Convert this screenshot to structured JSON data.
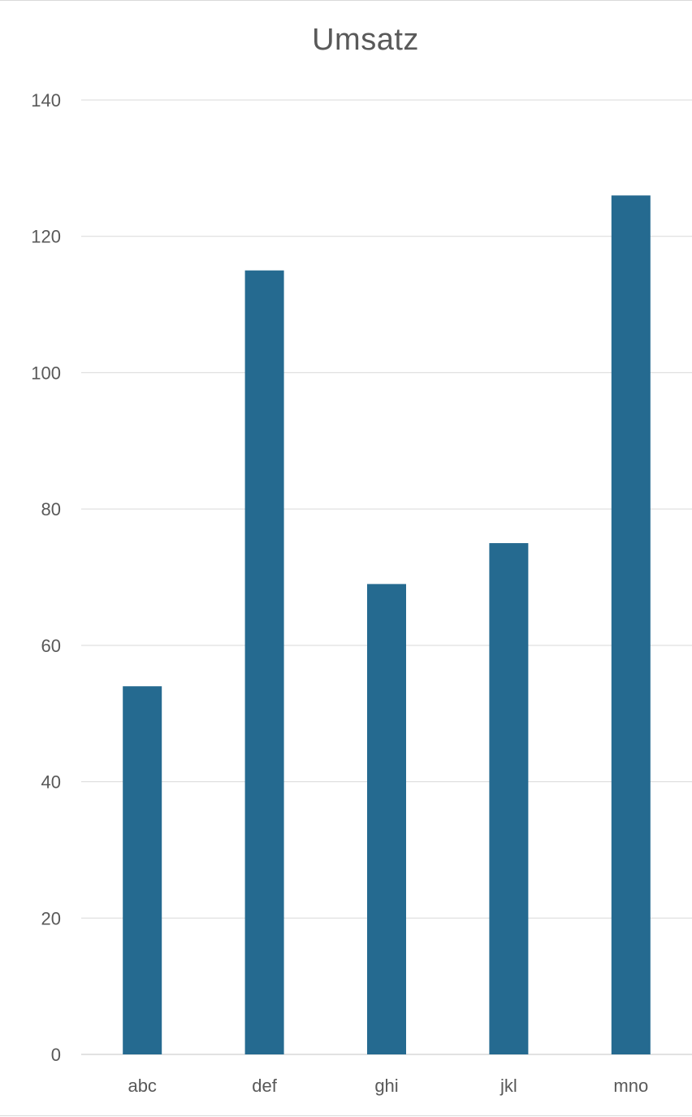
{
  "chart_data": {
    "type": "bar",
    "title": "Umsatz",
    "xlabel": "",
    "ylabel": "",
    "categories": [
      "abc",
      "def",
      "ghi",
      "jkl",
      "mno"
    ],
    "values": [
      54,
      115,
      69,
      75,
      126
    ],
    "ylim": [
      0,
      140
    ],
    "yticks": [
      "0",
      "20",
      "40",
      "60",
      "80",
      "100",
      "120",
      "140"
    ],
    "grid": true,
    "legend": "none",
    "colors": {
      "bar": "#256a90",
      "grid": "#d9d9d9",
      "text": "#595959"
    }
  }
}
